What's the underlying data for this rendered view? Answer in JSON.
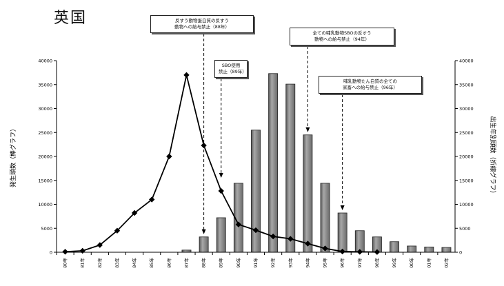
{
  "page": {
    "title": "英国"
  },
  "chart_data": {
    "type": "bar",
    "title": "英国",
    "categories": [
      "80年",
      "81年",
      "82年",
      "83年",
      "84年",
      "85年",
      "86年",
      "87年",
      "88年",
      "89年",
      "90年",
      "91年",
      "92年",
      "93年",
      "94年",
      "95年",
      "96年",
      "97年",
      "98年",
      "99年",
      "00年",
      "01年",
      "02年"
    ],
    "ylabel": "発生頭数（棒グラフ）",
    "y2label": "出生年別頭数（折線グラフ）",
    "ylim": [
      0,
      40000
    ],
    "y2lim": [
      0,
      40000
    ],
    "yticks": [
      "0",
      "5000",
      "10000",
      "15000",
      "20000",
      "25000",
      "30000",
      "35000",
      "40000"
    ],
    "y2ticks": [
      "0",
      "5000",
      "10000",
      "15000",
      "20000",
      "25000",
      "30000",
      "35000",
      "40000"
    ],
    "grid": false,
    "series": [
      {
        "name": "発生頭数",
        "kind": "bar",
        "axis": "left",
        "color": "#8c8c8c",
        "values": [
          0,
          0,
          0,
          0,
          0,
          0,
          0,
          450,
          3200,
          7200,
          14400,
          25500,
          37300,
          35100,
          24500,
          14400,
          8200,
          4500,
          3200,
          2200,
          1300,
          1100,
          1000
        ]
      },
      {
        "name": "出生年別頭数",
        "kind": "line",
        "axis": "right",
        "color": "#000000",
        "values": [
          100,
          300,
          1500,
          4500,
          8200,
          11000,
          20000,
          37000,
          22300,
          12800,
          5800,
          4600,
          3300,
          2800,
          1800,
          800,
          150,
          80,
          40,
          null,
          null,
          null,
          null
        ]
      }
    ],
    "annotations": [
      {
        "lines": [
          "反すう動物蛋白質の反すう",
          "動物への給与禁止（88年）"
        ],
        "category": "88年"
      },
      {
        "lines": [
          "SBO使用",
          "禁止（89年）"
        ],
        "category": "89年"
      },
      {
        "lines": [
          "全ての哺乳動物SBOの反すう",
          "動物への給与禁止（94年）"
        ],
        "category": "94年"
      },
      {
        "lines": [
          "哺乳動物たん白質の全ての",
          "家畜への給与禁止（96年）"
        ],
        "category": "96年"
      }
    ]
  }
}
